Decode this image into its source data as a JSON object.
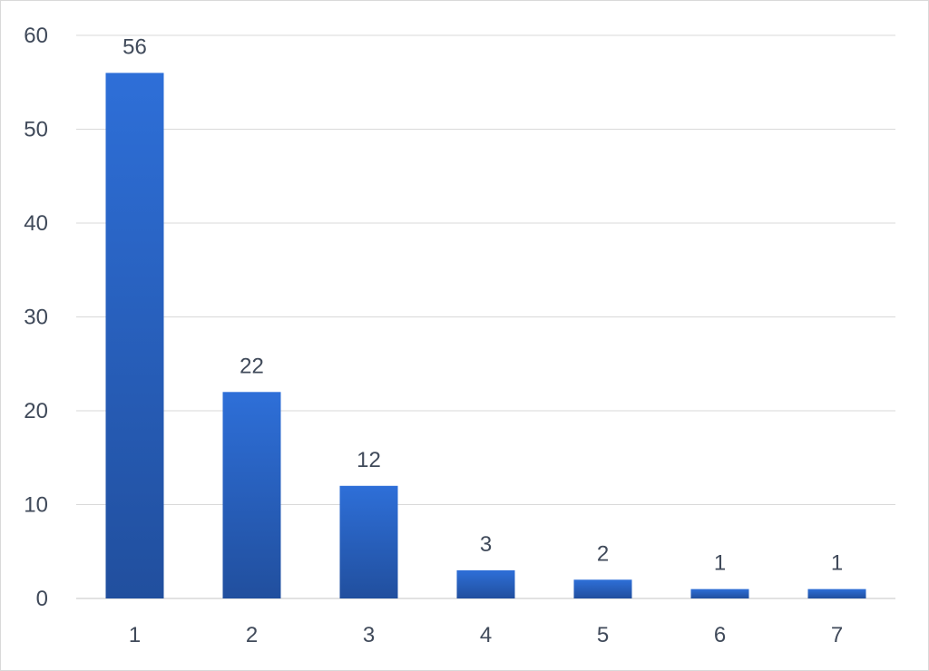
{
  "chart_data": {
    "type": "bar",
    "categories": [
      "1",
      "2",
      "3",
      "4",
      "5",
      "6",
      "7"
    ],
    "values": [
      56,
      22,
      12,
      3,
      2,
      1,
      1
    ],
    "data_labels": [
      "56",
      "22",
      "12",
      "3",
      "2",
      "1",
      "1"
    ],
    "ylim": [
      0,
      60
    ],
    "yticks": [
      0,
      10,
      20,
      30,
      40,
      50,
      60
    ],
    "ytick_labels": [
      "0",
      "10",
      "20",
      "30",
      "40",
      "50",
      "60"
    ],
    "title": "",
    "xlabel": "",
    "ylabel": "",
    "grid": true,
    "legend": "none",
    "colors": {
      "bar_top": "#2e6fd8",
      "bar_bottom": "#214f9e",
      "grid": "#d9d9d9",
      "text": "#404a5a"
    }
  }
}
